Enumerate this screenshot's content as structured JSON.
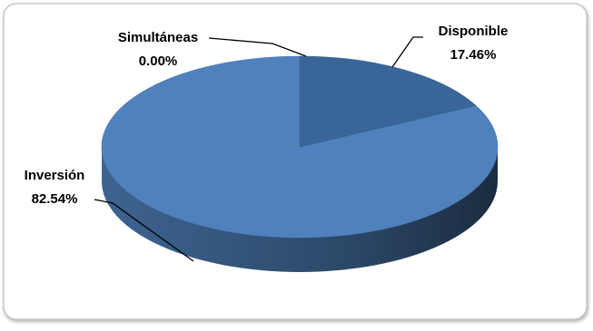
{
  "chart_data": {
    "type": "pie",
    "title": "",
    "categories": [
      "Disponible",
      "Inversión",
      "Simultáneas"
    ],
    "values": [
      17.46,
      82.54,
      0.0
    ],
    "labels": [
      {
        "name": "Disponible",
        "value_text": "17.46%"
      },
      {
        "name": "Inversión",
        "value_text": "82.54%"
      },
      {
        "name": "Simultáneas",
        "value_text": "0.00%"
      }
    ],
    "colors": {
      "pie_fill": "#4f81bd",
      "pie_highlight": "#3a6599",
      "side_dark": "#1f3552",
      "frame_border": "#bfbfbf"
    },
    "legend": "none",
    "style": "3d"
  }
}
